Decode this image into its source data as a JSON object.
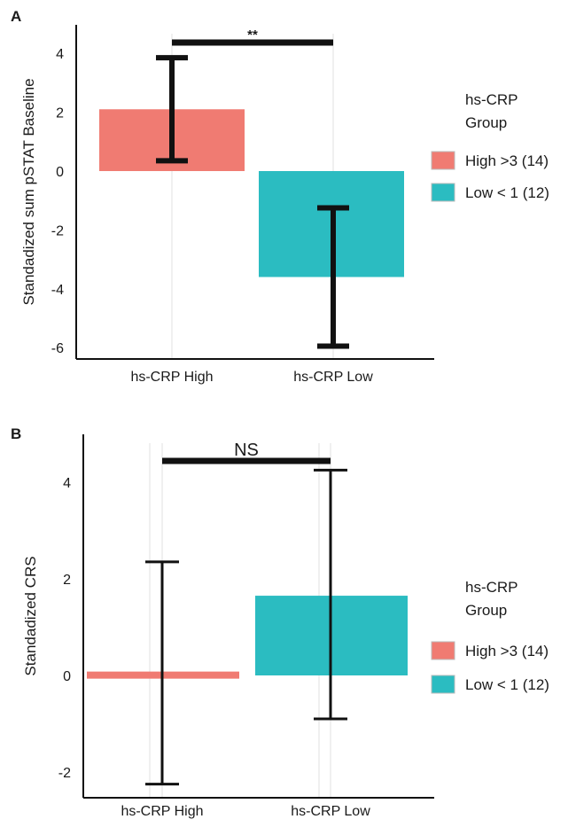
{
  "chart_data": [
    {
      "panel": "A",
      "type": "bar",
      "categories": [
        "hs-CRP High",
        "hs-CRP Low"
      ],
      "values": [
        2.1,
        -3.6
      ],
      "error_low": [
        0.35,
        -5.95
      ],
      "error_high": [
        3.85,
        -1.25
      ],
      "ylabel": "Standadized sum pSTAT Baseline",
      "xlabel": "",
      "yticks": [
        "4",
        "2",
        "0",
        "-2",
        "-4",
        "-6"
      ],
      "ylim": [
        -6.5,
        5.0
      ],
      "significance": "**",
      "legend": {
        "title_lines": [
          "hs-CRP",
          "Group"
        ],
        "entries": [
          "High >3 (14)",
          "Low < 1 (12)"
        ],
        "position": "right"
      },
      "colors": [
        "#f07b72",
        "#2bbcc1"
      ],
      "grid": false
    },
    {
      "panel": "B",
      "type": "bar",
      "categories": [
        "hs-CRP High",
        "hs-CRP Low"
      ],
      "values": [
        0.08,
        1.65
      ],
      "error_low": [
        -2.25,
        -0.9
      ],
      "error_high": [
        2.35,
        4.25
      ],
      "ylabel": "Standadized CRS",
      "xlabel": "",
      "yticks": [
        "4",
        "2",
        "0",
        "-2"
      ],
      "ylim": [
        -2.4,
        5.2
      ],
      "significance": "NS",
      "legend": {
        "title_lines": [
          "hs-CRP",
          "Group"
        ],
        "entries": [
          "High >3 (14)",
          "Low < 1 (12)"
        ],
        "position": "right"
      },
      "colors": [
        "#f07b72",
        "#2bbcc1"
      ],
      "grid": false
    }
  ]
}
